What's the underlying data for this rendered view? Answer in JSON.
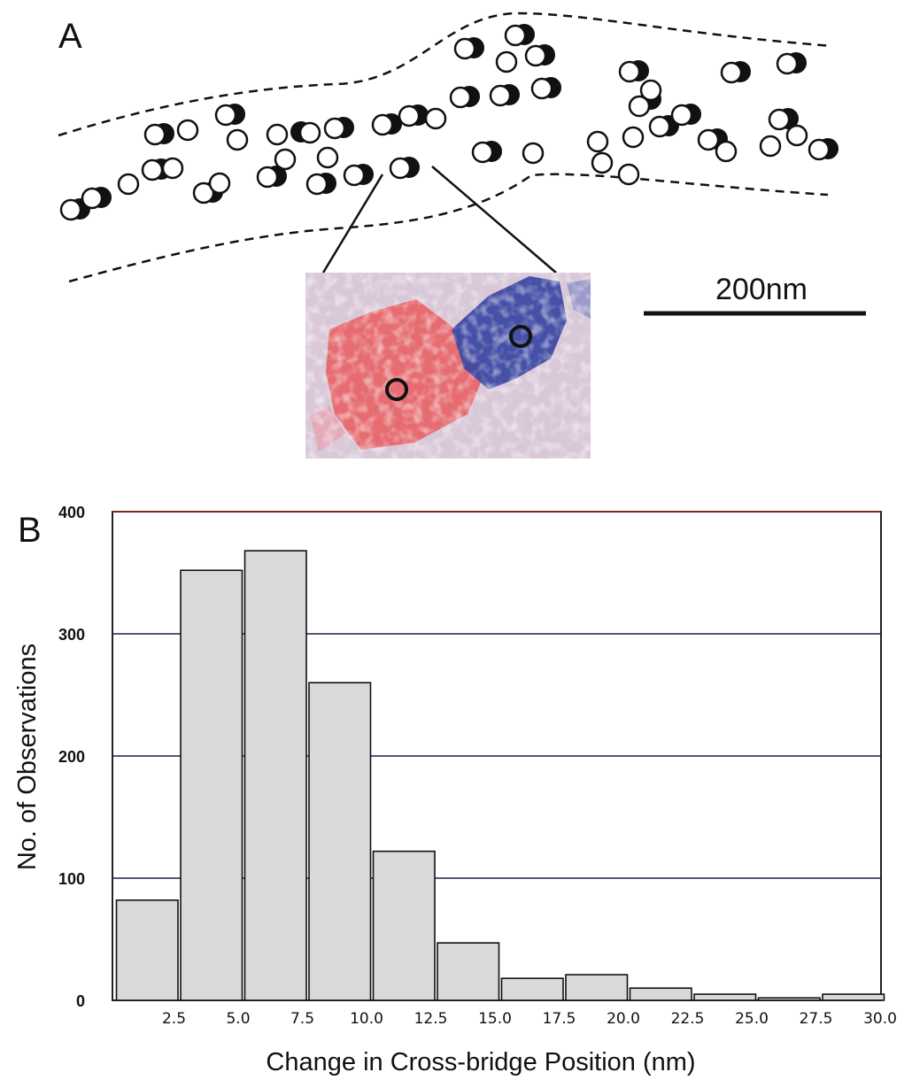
{
  "panel_a": {
    "label": "A",
    "scale_bar_label": "200nm"
  },
  "panel_b": {
    "label": "B"
  },
  "chart_data": {
    "type": "bar",
    "title": "",
    "xlabel": "Change in Cross-bridge Position (nm)",
    "ylabel": "No. of Observations",
    "x_tick_labels": [
      "2.5",
      "5.0",
      "7.5",
      "10.0",
      "12.5",
      "15.0",
      "17.5",
      "20.0",
      "22.5",
      "25.0",
      "27.5",
      "30.0"
    ],
    "y_tick_labels": [
      "0",
      "100",
      "200",
      "300",
      "400"
    ],
    "bin_edges": [
      0,
      2.5,
      5.0,
      7.5,
      10.0,
      12.5,
      15.0,
      17.5,
      20.0,
      22.5,
      25.0,
      27.5,
      30.0
    ],
    "values": [
      82,
      352,
      368,
      260,
      122,
      47,
      18,
      21,
      10,
      5,
      2,
      5
    ],
    "xlim": [
      0,
      30
    ],
    "ylim": [
      0,
      400
    ],
    "grid": "horizontal",
    "bar_color": "#d9d9d9"
  }
}
